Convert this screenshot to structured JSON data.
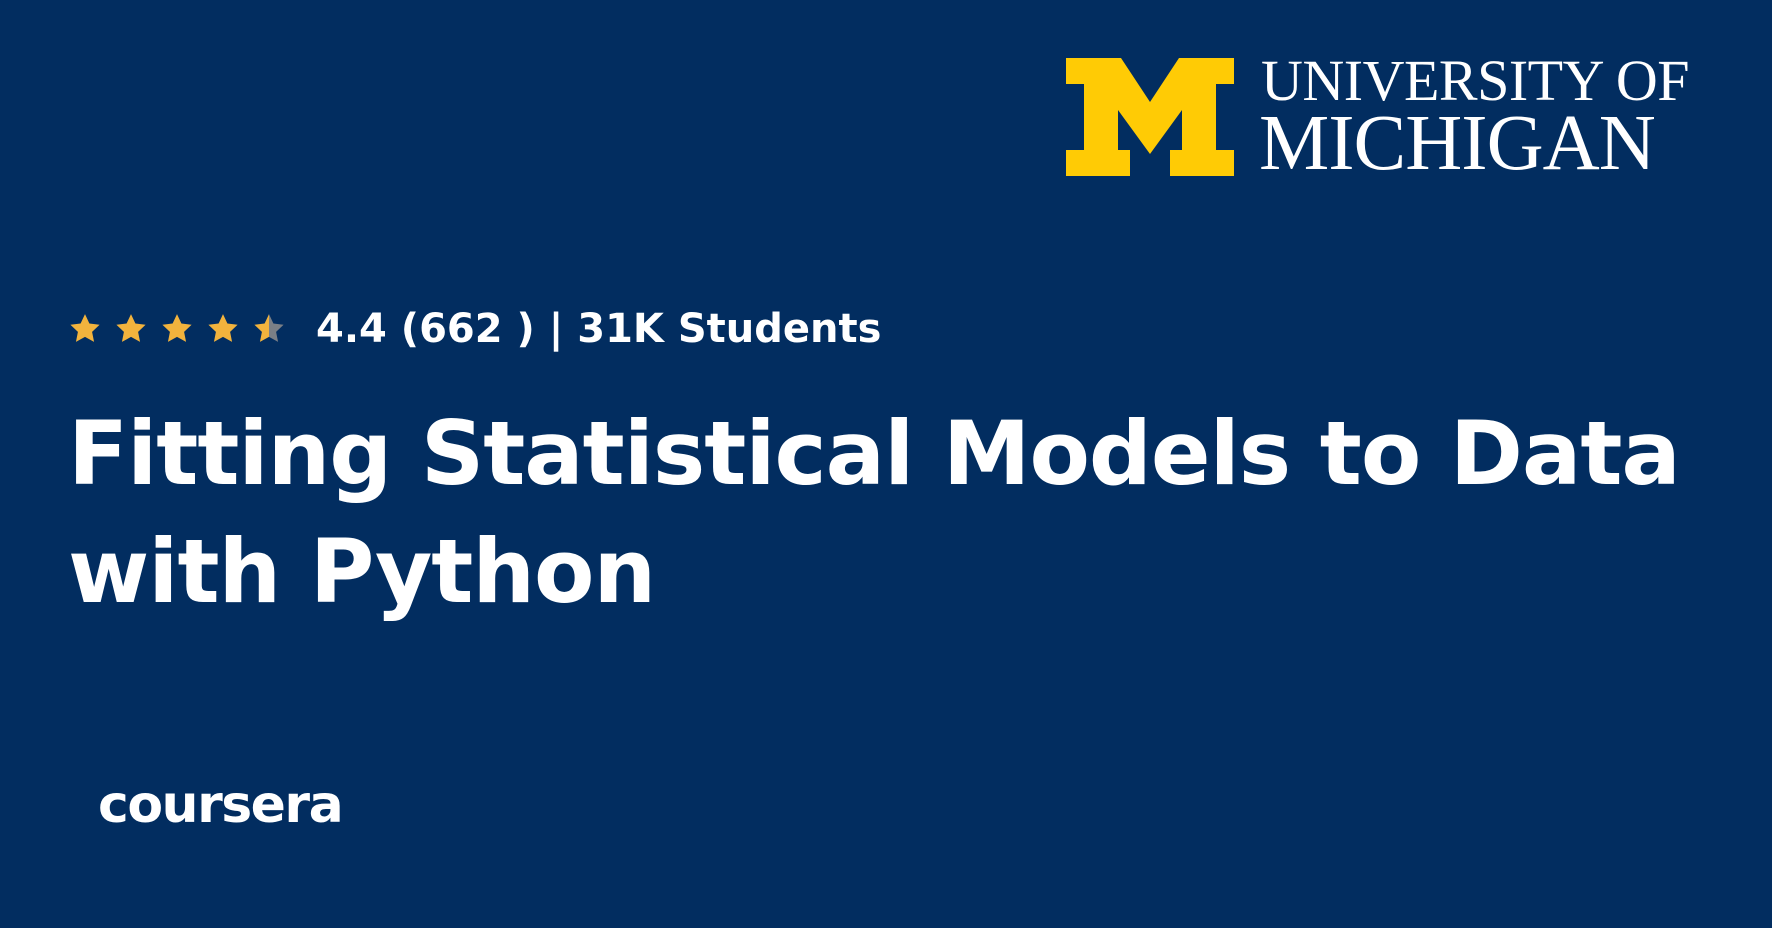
{
  "colors": {
    "background": "#022d60",
    "maize": "#ffcb05",
    "text": "#ffffff",
    "star_fill": "#f2b33d",
    "star_empty": "#7a7f86"
  },
  "university_logo": {
    "line1": "UNIVERSITY OF",
    "line2": "MICHIGAN",
    "icon": "block-m-icon"
  },
  "rating": {
    "stars_value": 4.4,
    "stars_max": 5,
    "summary": "4.4 (662 ) | 31K Students"
  },
  "course": {
    "title": "Fitting Statistical Models to Data with Python"
  },
  "platform": {
    "logo_text": "coursera"
  }
}
